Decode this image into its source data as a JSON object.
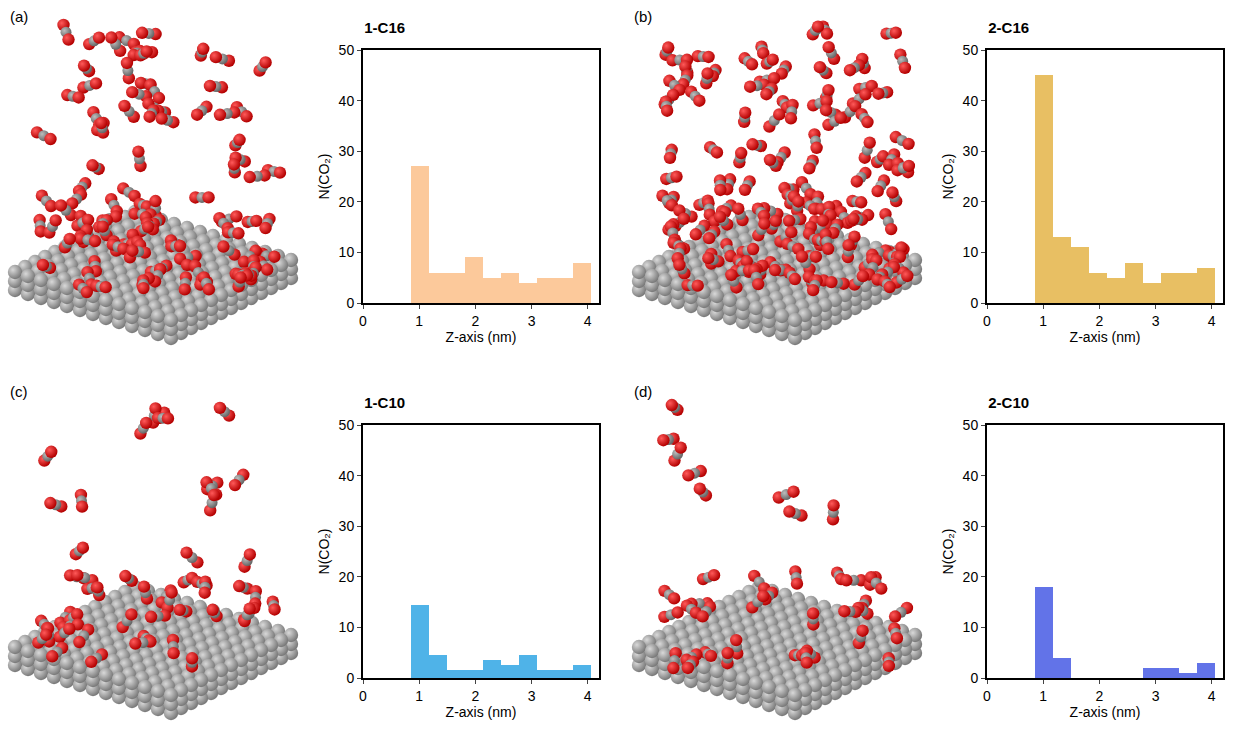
{
  "chart_data": [
    {
      "type": "histogram",
      "panel_label": "(a)",
      "title": "1-C16",
      "x_label": "Z-axis (nm)",
      "y_label": "N(CO₂)",
      "bins": [
        0.85,
        1.17,
        1.49,
        1.81,
        2.13,
        2.45,
        2.77,
        3.09,
        3.41,
        3.73,
        4.05
      ],
      "values": [
        27,
        6,
        6,
        9,
        5,
        6,
        4,
        5,
        5,
        8
      ],
      "color": "#fcc99b",
      "xlim": [
        0,
        4.2
      ],
      "xticks": [
        0,
        1,
        2,
        3,
        4
      ],
      "ylim": [
        0,
        50
      ],
      "yticks": [
        0,
        10,
        20,
        30,
        40,
        50
      ]
    },
    {
      "type": "histogram",
      "panel_label": "(b)",
      "title": "2-C16",
      "x_label": "Z-axis (nm)",
      "y_label": "N(CO₂)",
      "bins": [
        0.85,
        1.17,
        1.49,
        1.81,
        2.13,
        2.45,
        2.77,
        3.09,
        3.41,
        3.73,
        4.05
      ],
      "values": [
        45,
        13,
        11,
        6,
        5,
        8,
        4,
        6,
        6,
        7
      ],
      "color": "#e8bf63",
      "xlim": [
        0,
        4.2
      ],
      "xticks": [
        0,
        1,
        2,
        3,
        4
      ],
      "ylim": [
        0,
        50
      ],
      "yticks": [
        0,
        10,
        20,
        30,
        40,
        50
      ]
    },
    {
      "type": "histogram",
      "panel_label": "(c)",
      "title": "1-C10",
      "x_label": "Z-axis (nm)",
      "y_label": "N(CO₂)",
      "bins": [
        0.85,
        1.17,
        1.49,
        1.81,
        2.13,
        2.45,
        2.77,
        3.09,
        3.41,
        3.73,
        4.05
      ],
      "values": [
        14.5,
        4.5,
        1.5,
        1.5,
        3.5,
        2.5,
        4.5,
        1.5,
        1.5,
        2.5
      ],
      "color": "#4fb3e8",
      "xlim": [
        0,
        4.2
      ],
      "xticks": [
        0,
        1,
        2,
        3,
        4
      ],
      "ylim": [
        0,
        50
      ],
      "yticks": [
        0,
        10,
        20,
        30,
        40,
        50
      ]
    },
    {
      "type": "histogram",
      "panel_label": "(d)",
      "title": "2-C10",
      "x_label": "Z-axis (nm)",
      "y_label": "N(CO₂)",
      "bins": [
        0.85,
        1.17,
        1.49,
        1.81,
        2.13,
        2.45,
        2.77,
        3.09,
        3.41,
        3.73,
        4.05
      ],
      "values": [
        18,
        4,
        0,
        0,
        0,
        0,
        2,
        2,
        1,
        3
      ],
      "color": "#6273e8",
      "xlim": [
        0,
        4.2
      ],
      "xticks": [
        0,
        1,
        2,
        3,
        4
      ],
      "ylim": [
        0,
        50
      ],
      "yticks": [
        0,
        10,
        20,
        30,
        40,
        50
      ]
    }
  ]
}
